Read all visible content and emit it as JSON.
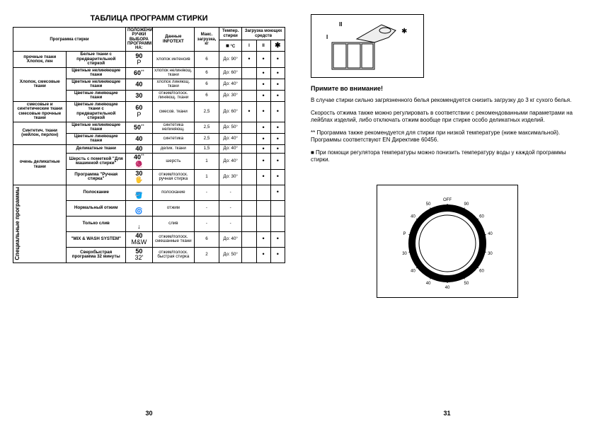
{
  "title": "ТАБЛИЦА ПРОГРАММ СТИРКИ",
  "headers": {
    "c1": "Программа стирки",
    "c2": "ПОЛОЖЕНИЕ РУЧКИ ВЫБОРА ПРОГРАММ НА:",
    "c3": "Данные INFOTEXT",
    "c4": "Макс. загрузка, кг",
    "c5_top": "Темпер. стирки",
    "c5": "°C",
    "c6_top": "Загрузка моющих средств",
    "c6a": "I",
    "c6b": "II",
    "c6c": "✱"
  },
  "groups": [
    {
      "label": "прочные ткани\nХлопок, лен",
      "rows": [
        {
          "desc": "Белые ткани с предварительной стиркой",
          "knob": "90",
          "icon": "P",
          "info": "хлопок интенсив",
          "kg": "6",
          "temp": "До: 90°",
          "d1": "•",
          "d2": "•",
          "d3": "•"
        }
      ]
    },
    {
      "label": "Хлопок, смесовые ткани",
      "rows": [
        {
          "desc": "Цветные нелиняющие ткани",
          "knob": "60",
          "note": "**",
          "info": "хлопок нелиняющ. ткани",
          "kg": "6",
          "temp": "До: 60°",
          "d1": "",
          "d2": "•",
          "d3": "•"
        },
        {
          "desc": "Цветные нелиняющие ткани",
          "knob": "40",
          "info": "хлопок линяющ. ткани",
          "kg": "6",
          "temp": "До: 40°",
          "d1": "",
          "d2": "•",
          "d3": "•"
        },
        {
          "desc": "Цветные линяющие ткани",
          "knob": "30",
          "info": "отжим/полоск. линяющ. ткани",
          "kg": "6",
          "temp": "До: 30°",
          "d1": "",
          "d2": "•",
          "d3": "•"
        }
      ]
    },
    {
      "label": "смесовые и синтетические ткани смесовые прочные ткани",
      "rows": [
        {
          "desc": "Цветные линяющие ткани с предварительной стиркой",
          "knob": "60",
          "icon": "P",
          "info": "смесов. ткани",
          "kg": "2,5",
          "temp": "До: 60°",
          "d1": "•",
          "d2": "•",
          "d3": "•"
        }
      ]
    },
    {
      "label": "Синтетич. ткани (нейлон, перлон)",
      "rows": [
        {
          "desc": "Цветные нелиняющие ткани",
          "knob": "50",
          "note": "**",
          "info": "синтети­ка нелиняющ.",
          "kg": "2,5",
          "temp": "До: 50°",
          "d1": "",
          "d2": "•",
          "d3": "•"
        },
        {
          "desc": "Цветные линяющие ткани",
          "knob": "40",
          "info": "синтетика",
          "kg": "2,5",
          "temp": "До: 40°",
          "d1": "",
          "d2": "•",
          "d3": "•"
        }
      ]
    },
    {
      "label": "очень деликатные ткани",
      "rows": [
        {
          "desc": "Деликатные ткани",
          "knob": "40",
          "info": "делик. ткани",
          "kg": "1,5",
          "temp": "До: 40°",
          "d1": "",
          "d2": "•",
          "d3": "•"
        },
        {
          "desc": "Шерсть с пометкой \"Для машинной стирки\"",
          "knob": "40",
          "note": "**",
          "icon": "🧶",
          "info": "шерсть",
          "kg": "1",
          "temp": "До: 40°",
          "d1": "",
          "d2": "•",
          "d3": "•"
        },
        {
          "desc": "Программа \"Ручная стирка\"",
          "knob": "30",
          "icon": "🖐",
          "info": "отжим/полоск. ручная стирка",
          "kg": "1",
          "temp": "До: 30°",
          "d1": "",
          "d2": "•",
          "d3": "•"
        }
      ]
    },
    {
      "label_vert": "Специальные программы",
      "rows": [
        {
          "desc": "Полоскание",
          "knob": "",
          "icon": "🪣",
          "info": "полоскание",
          "kg": "-",
          "temp": "-",
          "d1": "",
          "d2": "",
          "d3": "•"
        },
        {
          "desc": "Нормальный отжим",
          "knob": "",
          "icon": "🌀",
          "info": "отжим",
          "kg": "-",
          "temp": "-",
          "d1": "",
          "d2": "",
          "d3": ""
        },
        {
          "desc": "Только слив",
          "knob": "",
          "icon": "↓",
          "info": "слив",
          "kg": "-",
          "temp": "-",
          "d1": "",
          "d2": "",
          "d3": ""
        },
        {
          "desc": "\"MIX & WASH SYSTEM\"",
          "knob": "40",
          "icon": "M&W",
          "info": "отжим/полоск. смешанные ткани",
          "kg": "6",
          "temp": "До: 40°",
          "d1": "",
          "d2": "•",
          "d3": "•"
        },
        {
          "desc": "Сверхбыстрая программа 32 минуты",
          "knob": "50",
          "icon": "32'",
          "info": "отжим/полоск. быстрая стирка",
          "kg": "2",
          "temp": "До: 50°",
          "d1": "",
          "d2": "•",
          "d3": "•"
        }
      ]
    }
  ],
  "page_left_num": "30",
  "page_right_num": "31",
  "right": {
    "title": "Примите во внимание!",
    "p1": "В случае стирки сильно загрязненного белья рекомендуется снизить загрузку до 3 кг сухого белья.",
    "p2": "Скорость отжима также можно регулировать в соответствии с рекомендованными параметрами на лейблах изделий, либо отключать отжим вообще при стирке особо деликатных изделий.",
    "p3": "** Программа также рекомендуется для стирки при низкой температуре (ниже максимальной). Программы соответствуют EN Директиве 60456.",
    "p4": "■ При помощи регулятора температуры можно понизить температуру воды у каждой программы стирки.",
    "dial_labels": [
      "OFF",
      "90",
      "60",
      "40",
      "30",
      "60",
      "50",
      "40",
      "40",
      "40",
      "30",
      "P",
      "40",
      "50"
    ]
  },
  "colors": {
    "border": "#000000",
    "bg": "#ffffff",
    "text": "#000000"
  }
}
